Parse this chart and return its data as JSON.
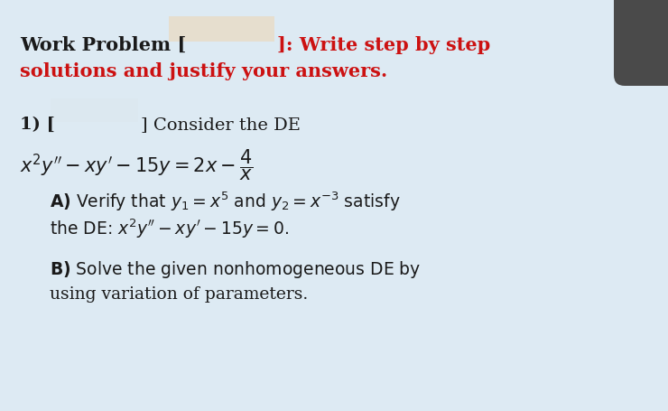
{
  "bg_color": "#ddeaf3",
  "text_color": "#1a1a1a",
  "red_color": "#cc1111",
  "highlight_color_header": "#e8c9a0",
  "highlight_color_q": "#e0e8f0",
  "dark_box_color": "#4a4a4a",
  "fig_width": 7.4,
  "fig_height": 4.55,
  "dpi": 100,
  "line1_black": "Work Problem [",
  "line1_red": "]: Write step by step",
  "line2_red": "solutions and justify your answers.",
  "q1_prefix": "1) [",
  "q1_suffix": "] Consider the DE",
  "de_eq": "$x^2y'' - xy' - 15y = 2x - \\dfrac{4}{x}$",
  "partA_line1": "Verify that $y_1 = x^5$ and $y_2 = x^{-3}$ satisfy",
  "partA_line2": "the DE: $x^2y'' - xy' - 15y = 0.$",
  "partB_line1": "Solve the given nonhomogeneous DE by",
  "partB_line2": "using variation of parameters."
}
